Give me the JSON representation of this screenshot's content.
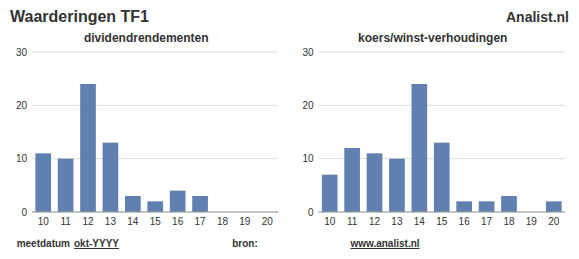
{
  "title": "Waarderingen TF1",
  "subtitle": "Analist.nl",
  "annotations": [
    "meetdatum",
    "okt-YYYY",
    "bron:",
    "www.analist.nl"
  ],
  "chart_data": [
    {
      "type": "bar",
      "title": "dividendrendementen",
      "categories": [
        "10",
        "11",
        "12",
        "13",
        "14",
        "15",
        "16",
        "17",
        "18",
        "19",
        "20"
      ],
      "values": [
        11,
        10,
        24,
        13,
        3,
        2,
        4,
        3,
        0,
        0,
        0
      ],
      "color": "#6080b0",
      "ylim": [
        0,
        30
      ],
      "yticks": [
        0,
        10,
        20,
        30
      ],
      "grid": true
    },
    {
      "type": "bar",
      "title": "koers/winst-verhoudingen",
      "categories": [
        "10",
        "11",
        "12",
        "13",
        "14",
        "15",
        "16",
        "17",
        "18",
        "19",
        "20"
      ],
      "values": [
        7,
        12,
        11,
        10,
        24,
        13,
        2,
        2,
        3,
        0,
        2
      ],
      "color": "#6080b0",
      "ylim": [
        0,
        30
      ],
      "yticks": [
        0,
        10,
        20,
        30
      ],
      "grid": true
    }
  ]
}
